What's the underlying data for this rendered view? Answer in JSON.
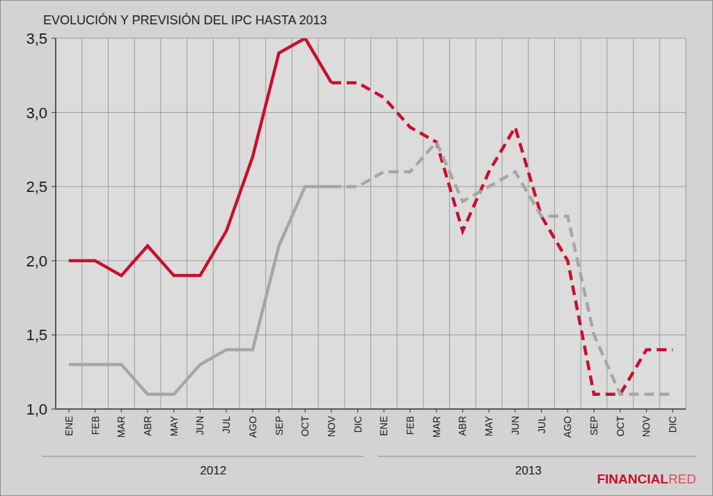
{
  "chart_data": {
    "type": "line",
    "title": "EVOLUCIÓN Y PREVISIÓN DEL IPC HASTA 2013",
    "categories": [
      "ENE",
      "FEB",
      "MAR",
      "ABR",
      "MAY",
      "JUN",
      "JUL",
      "AGO",
      "SEP",
      "OCT",
      "NOV",
      "DIC",
      "ENE",
      "FEB",
      "MAR",
      "ABR",
      "MAY",
      "JUN",
      "JUL",
      "AGO",
      "SEP",
      "OCT",
      "NOV",
      "DIC"
    ],
    "x_groups": [
      {
        "label": "2012",
        "count": 12
      },
      {
        "label": "2013",
        "count": 12
      }
    ],
    "series": [
      {
        "color": "#c8102e",
        "line_style": "solid",
        "values": [
          2.0,
          2.0,
          1.9,
          2.1,
          1.9,
          1.9,
          2.2,
          2.7,
          3.4,
          3.5,
          3.2,
          null,
          null,
          null,
          null,
          null,
          null,
          null,
          null,
          null,
          null,
          null,
          null,
          null
        ]
      },
      {
        "color": "#a6a6a6",
        "line_style": "solid",
        "values": [
          1.3,
          1.3,
          1.3,
          1.1,
          1.1,
          1.3,
          1.4,
          1.4,
          2.1,
          2.5,
          2.5,
          null,
          null,
          null,
          null,
          null,
          null,
          null,
          null,
          null,
          null,
          null,
          null,
          null
        ]
      },
      {
        "color": "#c8102e",
        "line_style": "dashed",
        "values": [
          null,
          null,
          null,
          null,
          null,
          null,
          null,
          null,
          null,
          null,
          3.2,
          3.2,
          3.1,
          2.9,
          2.8,
          2.2,
          2.6,
          2.9,
          2.3,
          2.0,
          1.1,
          1.1,
          1.4,
          1.4
        ]
      },
      {
        "color": "#a6a6a6",
        "line_style": "dashed",
        "values": [
          null,
          null,
          null,
          null,
          null,
          null,
          null,
          null,
          null,
          null,
          2.5,
          2.5,
          2.6,
          2.6,
          2.8,
          2.4,
          2.5,
          2.6,
          2.3,
          2.3,
          1.5,
          1.1,
          1.1,
          1.1
        ]
      }
    ],
    "ylim": [
      1.0,
      3.5
    ],
    "yticks": [
      {
        "value": 1.0,
        "label": "1,0"
      },
      {
        "value": 1.5,
        "label": "1,5"
      },
      {
        "value": 2.0,
        "label": "2,0"
      },
      {
        "value": 2.5,
        "label": "2,5"
      },
      {
        "value": 3.0,
        "label": "3,0"
      },
      {
        "value": 3.5,
        "label": "3,5"
      }
    ],
    "grid": true,
    "brand": [
      "FINANCIAL",
      "RED"
    ]
  }
}
